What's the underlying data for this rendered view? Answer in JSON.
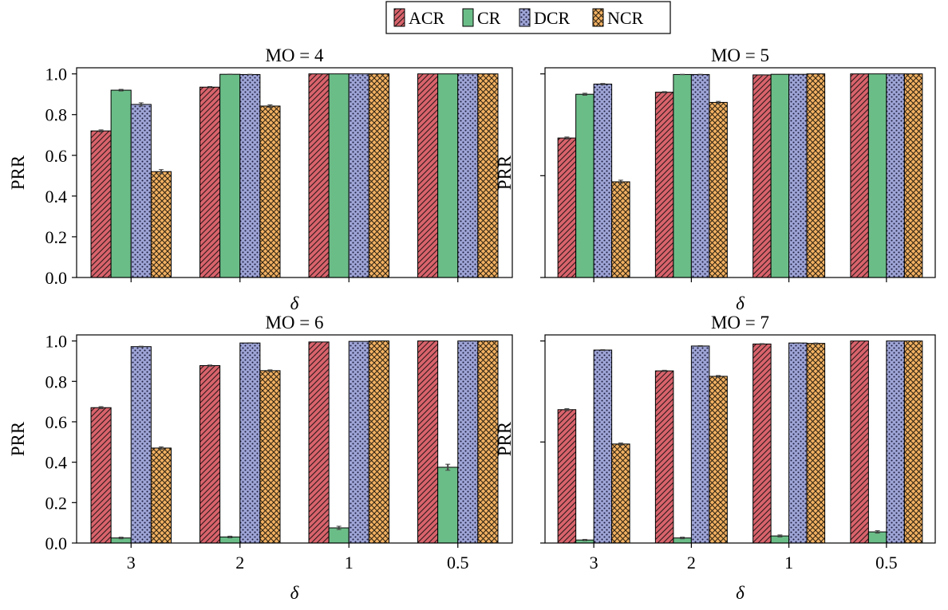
{
  "legend": {
    "placement": "top-center",
    "entries": [
      "ACR",
      "CR",
      "DCR",
      "NCR"
    ]
  },
  "colors": {
    "ACR": "#d9636c",
    "CR": "#6bbd88",
    "DCR": "#9ea5d6",
    "NCR": "#f2b162"
  },
  "patterns": {
    "ACR": "diagonal-hatch",
    "CR": "solid",
    "DCR": "dots",
    "NCR": "crosshatch"
  },
  "chart_data": [
    {
      "type": "bar",
      "title": "MO = 4",
      "xlabel": "δ",
      "ylabel": "PRR",
      "categories": [
        "3",
        "2",
        "1",
        "0.5"
      ],
      "ylim": [
        0,
        1.03
      ],
      "yticks": [
        "0.0",
        "0.2",
        "0.4",
        "0.6",
        "0.8",
        "1.0"
      ],
      "show_x_ticklabels": false,
      "show_y_ticklabels": true,
      "grid": false,
      "series": [
        {
          "name": "ACR",
          "values": [
            0.72,
            0.935,
            1.0,
            1.0
          ],
          "errors": [
            0.005,
            0.003,
            0.0,
            0.0
          ]
        },
        {
          "name": "CR",
          "values": [
            0.92,
            0.998,
            1.0,
            1.0
          ],
          "errors": [
            0.004,
            0.001,
            0.0,
            0.0
          ]
        },
        {
          "name": "DCR",
          "values": [
            0.85,
            0.997,
            1.0,
            1.0
          ],
          "errors": [
            0.008,
            0.001,
            0.0,
            0.0
          ]
        },
        {
          "name": "NCR",
          "values": [
            0.52,
            0.842,
            1.0,
            1.0
          ],
          "errors": [
            0.01,
            0.006,
            0.0,
            0.0
          ]
        }
      ]
    },
    {
      "type": "bar",
      "title": "MO = 5",
      "xlabel": "δ",
      "ylabel": "PRR",
      "categories": [
        "3",
        "2",
        "1",
        "0.5"
      ],
      "ylim": [
        0,
        1.03
      ],
      "yticks": [
        "0.0",
        "0.5",
        "1.0"
      ],
      "show_x_ticklabels": false,
      "show_y_ticklabels": false,
      "grid": false,
      "series": [
        {
          "name": "ACR",
          "values": [
            0.685,
            0.91,
            0.995,
            1.0
          ],
          "errors": [
            0.005,
            0.003,
            0.001,
            0.0
          ]
        },
        {
          "name": "CR",
          "values": [
            0.9,
            0.997,
            0.998,
            1.0
          ],
          "errors": [
            0.005,
            0.001,
            0.0,
            0.0
          ]
        },
        {
          "name": "DCR",
          "values": [
            0.95,
            0.997,
            0.998,
            1.0
          ],
          "errors": [
            0.003,
            0.001,
            0.0,
            0.0
          ]
        },
        {
          "name": "NCR",
          "values": [
            0.47,
            0.86,
            1.0,
            1.0
          ],
          "errors": [
            0.008,
            0.005,
            0.0,
            0.0
          ]
        }
      ]
    },
    {
      "type": "bar",
      "title": "MO = 6",
      "xlabel": "δ",
      "ylabel": "PRR",
      "categories": [
        "3",
        "2",
        "1",
        "0.5"
      ],
      "ylim": [
        0,
        1.03
      ],
      "yticks": [
        "0.0",
        "0.2",
        "0.4",
        "0.6",
        "0.8",
        "1.0"
      ],
      "show_x_ticklabels": true,
      "show_y_ticklabels": true,
      "grid": false,
      "series": [
        {
          "name": "ACR",
          "values": [
            0.67,
            0.878,
            0.995,
            1.0
          ],
          "errors": [
            0.005,
            0.003,
            0.001,
            0.0
          ]
        },
        {
          "name": "CR",
          "values": [
            0.025,
            0.03,
            0.075,
            0.375
          ],
          "errors": [
            0.004,
            0.004,
            0.008,
            0.015
          ]
        },
        {
          "name": "DCR",
          "values": [
            0.972,
            0.99,
            0.998,
            1.0
          ],
          "errors": [
            0.002,
            0.001,
            0.0,
            0.0
          ]
        },
        {
          "name": "NCR",
          "values": [
            0.47,
            0.853,
            1.0,
            1.0
          ],
          "errors": [
            0.006,
            0.004,
            0.0,
            0.0
          ]
        }
      ]
    },
    {
      "type": "bar",
      "title": "MO = 7",
      "xlabel": "δ",
      "ylabel": "PRR",
      "categories": [
        "3",
        "2",
        "1",
        "0.5"
      ],
      "ylim": [
        0,
        1.03
      ],
      "yticks": [
        "0.0",
        "0.5",
        "1.0"
      ],
      "show_x_ticklabels": true,
      "show_y_ticklabels": false,
      "grid": false,
      "series": [
        {
          "name": "ACR",
          "values": [
            0.66,
            0.852,
            0.985,
            1.0
          ],
          "errors": [
            0.005,
            0.003,
            0.002,
            0.0
          ]
        },
        {
          "name": "CR",
          "values": [
            0.015,
            0.025,
            0.035,
            0.055
          ],
          "errors": [
            0.003,
            0.004,
            0.005,
            0.006
          ]
        },
        {
          "name": "DCR",
          "values": [
            0.955,
            0.975,
            0.99,
            1.0
          ],
          "errors": [
            0.002,
            0.002,
            0.001,
            0.0
          ]
        },
        {
          "name": "NCR",
          "values": [
            0.49,
            0.825,
            0.988,
            1.0
          ],
          "errors": [
            0.005,
            0.004,
            0.002,
            0.0
          ]
        }
      ]
    }
  ]
}
